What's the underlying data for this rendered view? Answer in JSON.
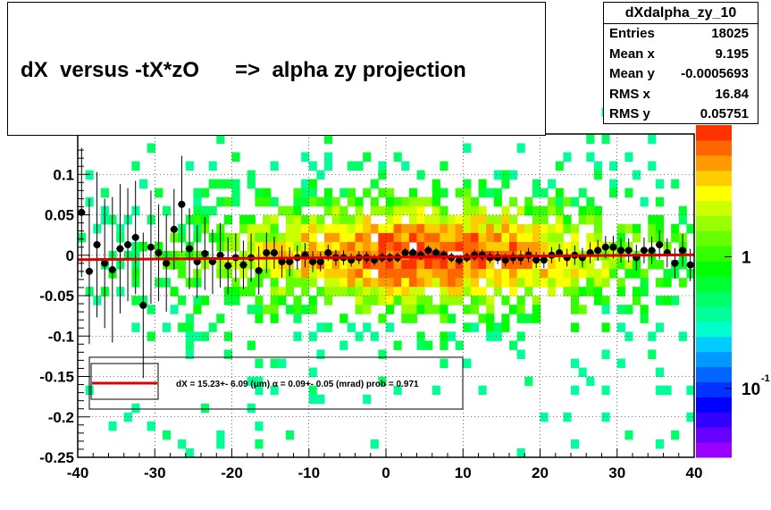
{
  "title": "dX  versus -tX*zO      =>  alpha zy projection",
  "stats": {
    "name": "dXdalpha_zy_10",
    "rows": [
      {
        "label": "Entries",
        "value": "18025"
      },
      {
        "label": "Mean x",
        "value": "9.195"
      },
      {
        "label": "Mean y",
        "value": "-0.0005693"
      },
      {
        "label": "RMS x",
        "value": "16.84"
      },
      {
        "label": "RMS y",
        "value": "0.05751"
      }
    ]
  },
  "fit_label": "dX =   15.23+- 6.09 (μm) α =   0.09+- 0.05 (mrad) prob = 0.971",
  "colors": {
    "fit_line": "#dd0000",
    "markers": "#000000",
    "palette": [
      "#9900ff",
      "#6600ff",
      "#3300ff",
      "#0000ff",
      "#0033ff",
      "#0066ff",
      "#0099ff",
      "#00ccff",
      "#00ffcc",
      "#00ff99",
      "#00ff66",
      "#00ff33",
      "#00ff00",
      "#33ff00",
      "#66ff00",
      "#99ff00",
      "#ccff00",
      "#ffff00",
      "#ffcc00",
      "#ff9900",
      "#ff6600",
      "#ff3300"
    ]
  },
  "chart_data": {
    "type": "heatmap",
    "title": "dX  versus -tX*zO      =>  alpha zy projection",
    "xlabel": "",
    "ylabel": "",
    "xlim": [
      -40,
      40
    ],
    "ylim": [
      -0.25,
      0.15
    ],
    "x_ticks": [
      "-40",
      "-30",
      "-20",
      "-10",
      "0",
      "10",
      "20",
      "30",
      "40"
    ],
    "y_ticks": [
      "-0.25",
      "-0.2",
      "-0.15",
      "-0.1",
      "-0.05",
      "0",
      "0.05",
      "0.1"
    ],
    "z_scale": "log",
    "z_ticks": [
      {
        "label": "1",
        "value": 1
      },
      {
        "label": "10",
        "exp": "-1",
        "value": 0.1
      }
    ],
    "grid": true,
    "profile_points": {
      "x": [
        -39.5,
        -38.5,
        -37.5,
        -36.5,
        -35.5,
        -34.5,
        -33.5,
        -32.5,
        -31.5,
        -30.5,
        -29.5,
        -28.5,
        -27.5,
        -26.5,
        -25.5,
        -24.5,
        -23.5,
        -22.5,
        -21.5,
        -20.5,
        -19.5,
        -18.5,
        -17.5,
        -16.5,
        -15.5,
        -14.5,
        -13.5,
        -12.5,
        -11.5,
        -10.5,
        -9.5,
        -8.5,
        -7.5,
        -6.5,
        -5.5,
        -4.5,
        -3.5,
        -2.5,
        -1.5,
        -0.5,
        0.5,
        1.5,
        2.5,
        3.5,
        4.5,
        5.5,
        6.5,
        7.5,
        8.5,
        9.5,
        10.5,
        11.5,
        12.5,
        13.5,
        14.5,
        15.5,
        16.5,
        17.5,
        18.5,
        19.5,
        20.5,
        21.5,
        22.5,
        23.5,
        24.5,
        25.5,
        26.5,
        27.5,
        28.5,
        29.5,
        30.5,
        31.5,
        32.5,
        33.5,
        34.5,
        35.5,
        36.5,
        37.5,
        38.5,
        39.5
      ],
      "y": [
        0.053,
        -0.02,
        0.013,
        -0.01,
        -0.018,
        0.008,
        0.013,
        0.022,
        -0.062,
        0.01,
        0.003,
        -0.01,
        0.032,
        0.063,
        0.008,
        -0.008,
        0.002,
        -0.008,
        0.0,
        -0.013,
        -0.003,
        -0.012,
        -0.003,
        -0.019,
        0.003,
        0.003,
        -0.008,
        -0.008,
        -0.003,
        0.0,
        -0.008,
        -0.008,
        0.003,
        -0.003,
        -0.003,
        -0.006,
        -0.003,
        -0.003,
        -0.006,
        -0.003,
        -0.003,
        -0.003,
        0.003,
        0.003,
        0.0,
        0.006,
        0.003,
        0.0,
        -0.003,
        -0.006,
        -0.003,
        0.0,
        0.0,
        -0.003,
        -0.003,
        -0.006,
        -0.003,
        -0.003,
        0.0,
        -0.006,
        -0.006,
        0.0,
        0.003,
        -0.003,
        0.0,
        -0.003,
        0.003,
        0.006,
        0.01,
        0.01,
        0.006,
        0.006,
        -0.003,
        0.006,
        0.006,
        0.013,
        0.003,
        -0.01,
        0.006,
        -0.012
      ],
      "yerr": [
        0.08,
        0.09,
        0.09,
        0.08,
        0.09,
        0.08,
        0.07,
        0.07,
        0.09,
        0.07,
        0.06,
        0.06,
        0.05,
        0.06,
        0.05,
        0.045,
        0.045,
        0.04,
        0.04,
        0.035,
        0.03,
        0.03,
        0.03,
        0.03,
        0.025,
        0.02,
        0.02,
        0.018,
        0.015,
        0.015,
        0.013,
        0.012,
        0.01,
        0.01,
        0.009,
        0.008,
        0.008,
        0.007,
        0.007,
        0.006,
        0.006,
        0.006,
        0.006,
        0.006,
        0.006,
        0.006,
        0.006,
        0.006,
        0.006,
        0.006,
        0.006,
        0.007,
        0.007,
        0.007,
        0.008,
        0.008,
        0.008,
        0.009,
        0.009,
        0.01,
        0.01,
        0.01,
        0.011,
        0.011,
        0.012,
        0.012,
        0.013,
        0.013,
        0.014,
        0.014,
        0.015,
        0.015,
        0.016,
        0.016,
        0.017,
        0.018,
        0.018,
        0.019,
        0.02,
        0.02
      ]
    },
    "fit_line": {
      "x": [
        -40,
        40
      ],
      "y": [
        -0.0055,
        0.0005
      ]
    }
  }
}
